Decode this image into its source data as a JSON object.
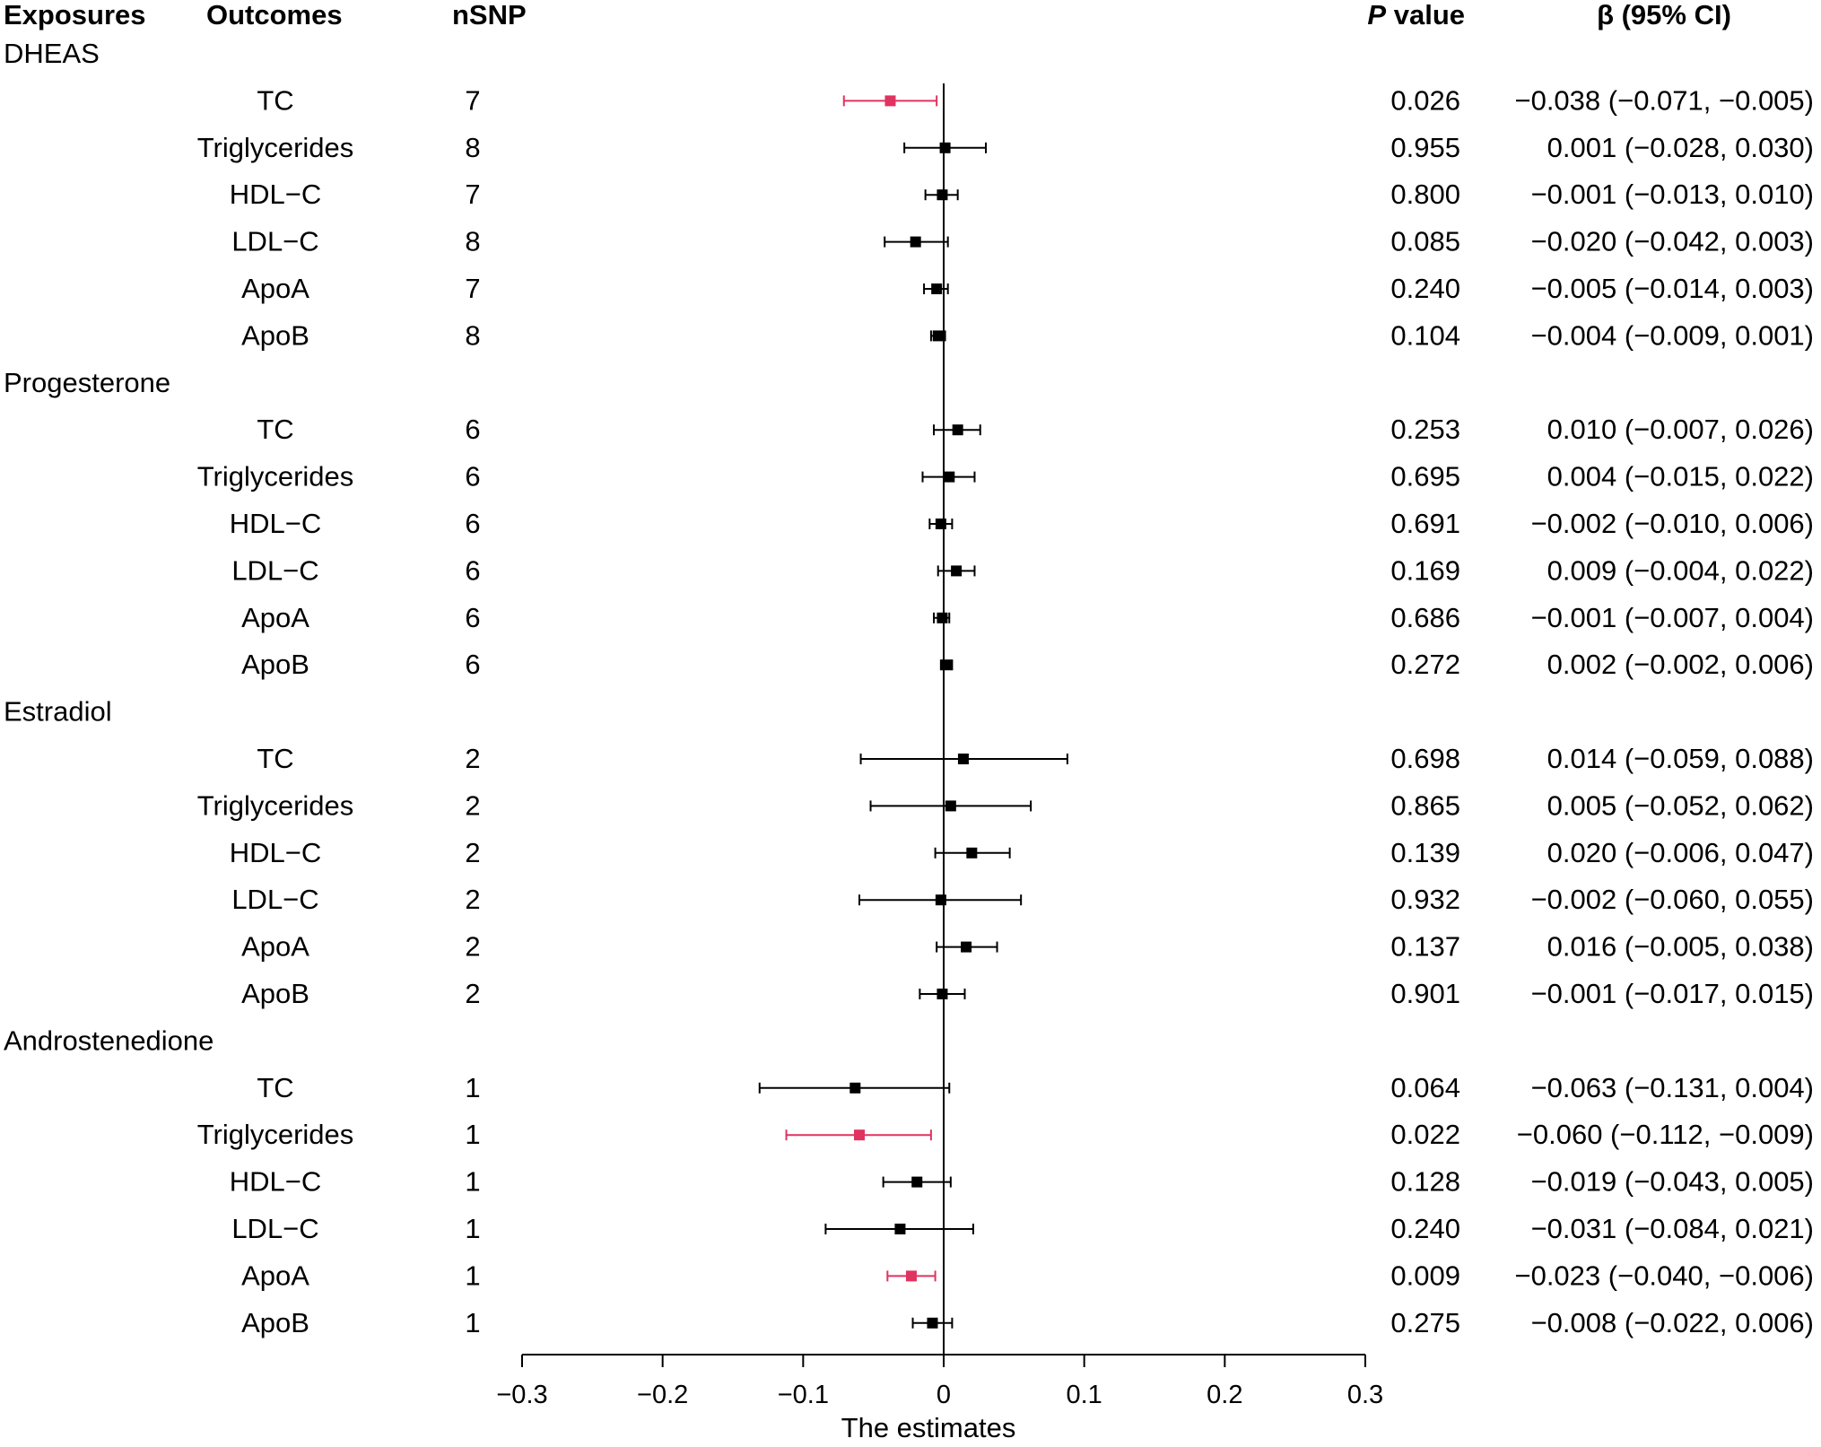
{
  "chart_data": {
    "type": "forest",
    "headers": {
      "exposures": "Exposures",
      "outcomes": "Outcomes",
      "nsnp": "nSNP",
      "pvalue_italic": "P",
      "pvalue_rest": " value",
      "beta": "β (95% CI)"
    },
    "xlabel": "The estimates",
    "xlim": [
      -0.3,
      0.3
    ],
    "xticks": [
      -0.3,
      -0.2,
      -0.1,
      0,
      0.1,
      0.2,
      0.3
    ],
    "xtick_labels": [
      "−0.3",
      "−0.2",
      "−0.1",
      "0",
      "0.1",
      "0.2",
      "0.3"
    ],
    "significant_color": "#e0335f",
    "default_color": "#000000",
    "groups": [
      {
        "exposure": "DHEAS",
        "rows": [
          {
            "outcome": "TC",
            "nsnp": "7",
            "beta": -0.038,
            "lo": -0.071,
            "hi": -0.005,
            "p": "0.026",
            "ci_text": "−0.038 (−0.071, −0.005)",
            "significant": true
          },
          {
            "outcome": "Triglycerides",
            "nsnp": "8",
            "beta": 0.001,
            "lo": -0.028,
            "hi": 0.03,
            "p": "0.955",
            "ci_text": "0.001 (−0.028, 0.030)",
            "significant": false
          },
          {
            "outcome": "HDL−C",
            "nsnp": "7",
            "beta": -0.001,
            "lo": -0.013,
            "hi": 0.01,
            "p": "0.800",
            "ci_text": "−0.001 (−0.013, 0.010)",
            "significant": false
          },
          {
            "outcome": "LDL−C",
            "nsnp": "8",
            "beta": -0.02,
            "lo": -0.042,
            "hi": 0.003,
            "p": "0.085",
            "ci_text": "−0.020 (−0.042, 0.003)",
            "significant": false
          },
          {
            "outcome": "ApoA",
            "nsnp": "7",
            "beta": -0.005,
            "lo": -0.014,
            "hi": 0.003,
            "p": "0.240",
            "ci_text": "−0.005 (−0.014, 0.003)",
            "significant": false
          },
          {
            "outcome": "ApoB",
            "nsnp": "8",
            "beta": -0.004,
            "lo": -0.009,
            "hi": 0.001,
            "p": "0.104",
            "ci_text": "−0.004 (−0.009, 0.001)",
            "significant": false
          }
        ]
      },
      {
        "exposure": "Progesterone",
        "rows": [
          {
            "outcome": "TC",
            "nsnp": "6",
            "beta": 0.01,
            "lo": -0.007,
            "hi": 0.026,
            "p": "0.253",
            "ci_text": "0.010 (−0.007, 0.026)",
            "significant": false
          },
          {
            "outcome": "Triglycerides",
            "nsnp": "6",
            "beta": 0.004,
            "lo": -0.015,
            "hi": 0.022,
            "p": "0.695",
            "ci_text": "0.004 (−0.015, 0.022)",
            "significant": false
          },
          {
            "outcome": "HDL−C",
            "nsnp": "6",
            "beta": -0.002,
            "lo": -0.01,
            "hi": 0.006,
            "p": "0.691",
            "ci_text": "−0.002 (−0.010, 0.006)",
            "significant": false
          },
          {
            "outcome": "LDL−C",
            "nsnp": "6",
            "beta": 0.009,
            "lo": -0.004,
            "hi": 0.022,
            "p": "0.169",
            "ci_text": "0.009 (−0.004, 0.022)",
            "significant": false
          },
          {
            "outcome": "ApoA",
            "nsnp": "6",
            "beta": -0.001,
            "lo": -0.007,
            "hi": 0.004,
            "p": "0.686",
            "ci_text": "−0.001 (−0.007, 0.004)",
            "significant": false
          },
          {
            "outcome": "ApoB",
            "nsnp": "6",
            "beta": 0.002,
            "lo": -0.002,
            "hi": 0.006,
            "p": "0.272",
            "ci_text": "0.002 (−0.002, 0.006)",
            "significant": false
          }
        ]
      },
      {
        "exposure": "Estradiol",
        "rows": [
          {
            "outcome": "TC",
            "nsnp": "2",
            "beta": 0.014,
            "lo": -0.059,
            "hi": 0.088,
            "p": "0.698",
            "ci_text": "0.014 (−0.059, 0.088)",
            "significant": false
          },
          {
            "outcome": "Triglycerides",
            "nsnp": "2",
            "beta": 0.005,
            "lo": -0.052,
            "hi": 0.062,
            "p": "0.865",
            "ci_text": "0.005 (−0.052, 0.062)",
            "significant": false
          },
          {
            "outcome": "HDL−C",
            "nsnp": "2",
            "beta": 0.02,
            "lo": -0.006,
            "hi": 0.047,
            "p": "0.139",
            "ci_text": "0.020 (−0.006, 0.047)",
            "significant": false
          },
          {
            "outcome": "LDL−C",
            "nsnp": "2",
            "beta": -0.002,
            "lo": -0.06,
            "hi": 0.055,
            "p": "0.932",
            "ci_text": "−0.002 (−0.060, 0.055)",
            "significant": false
          },
          {
            "outcome": "ApoA",
            "nsnp": "2",
            "beta": 0.016,
            "lo": -0.005,
            "hi": 0.038,
            "p": "0.137",
            "ci_text": "0.016 (−0.005, 0.038)",
            "significant": false
          },
          {
            "outcome": "ApoB",
            "nsnp": "2",
            "beta": -0.001,
            "lo": -0.017,
            "hi": 0.015,
            "p": "0.901",
            "ci_text": "−0.001 (−0.017, 0.015)",
            "significant": false
          }
        ]
      },
      {
        "exposure": "Androstenedione",
        "rows": [
          {
            "outcome": "TC",
            "nsnp": "1",
            "beta": -0.063,
            "lo": -0.131,
            "hi": 0.004,
            "p": "0.064",
            "ci_text": "−0.063 (−0.131, 0.004)",
            "significant": false
          },
          {
            "outcome": "Triglycerides",
            "nsnp": "1",
            "beta": -0.06,
            "lo": -0.112,
            "hi": -0.009,
            "p": "0.022",
            "ci_text": "−0.060 (−0.112, −0.009)",
            "significant": true
          },
          {
            "outcome": "HDL−C",
            "nsnp": "1",
            "beta": -0.019,
            "lo": -0.043,
            "hi": 0.005,
            "p": "0.128",
            "ci_text": "−0.019 (−0.043, 0.005)",
            "significant": false
          },
          {
            "outcome": "LDL−C",
            "nsnp": "1",
            "beta": -0.031,
            "lo": -0.084,
            "hi": 0.021,
            "p": "0.240",
            "ci_text": "−0.031 (−0.084, 0.021)",
            "significant": false
          },
          {
            "outcome": "ApoA",
            "nsnp": "1",
            "beta": -0.023,
            "lo": -0.04,
            "hi": -0.006,
            "p": "0.009",
            "ci_text": "−0.023 (−0.040, −0.006)",
            "significant": true
          },
          {
            "outcome": "ApoB",
            "nsnp": "1",
            "beta": -0.008,
            "lo": -0.022,
            "hi": 0.006,
            "p": "0.275",
            "ci_text": "−0.008 (−0.022, 0.006)",
            "significant": false
          }
        ]
      }
    ]
  }
}
